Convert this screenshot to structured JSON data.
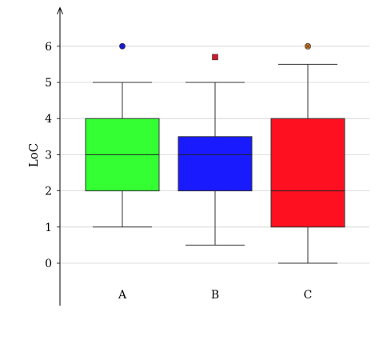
{
  "chart_data": {
    "type": "boxplot",
    "title": "",
    "xlabel": "",
    "ylabel": "LoC",
    "ylim": [
      -0.6,
      6.6
    ],
    "yticks": [
      0,
      1,
      2,
      3,
      4,
      5,
      6
    ],
    "ytick_labels": [
      "0",
      "1",
      "2",
      "3",
      "4",
      "5",
      "6"
    ],
    "grid": "horizontal",
    "categories": [
      "A",
      "B",
      "C"
    ],
    "series": [
      {
        "category": "A",
        "whisker_low": 1,
        "q1": 2,
        "median": 3,
        "q3": 4,
        "whisker_high": 5,
        "outliers": [
          6
        ],
        "box_color": "#33ff33",
        "outlier_marker": "circle",
        "outlier_color": "#1a1acc"
      },
      {
        "category": "B",
        "whisker_low": 0.5,
        "q1": 2,
        "median": 3,
        "q3": 3.5,
        "whisker_high": 5,
        "outliers": [
          5.7
        ],
        "box_color": "#1a1aff",
        "outlier_marker": "square",
        "outlier_color": "#cc1a2a"
      },
      {
        "category": "C",
        "whisker_low": 0,
        "q1": 1,
        "median": 2,
        "q3": 4,
        "whisker_high": 5.5,
        "outliers": [
          6
        ],
        "box_color": "#ff1020",
        "outlier_marker": "circle-x",
        "outlier_color": "#e07a1a"
      }
    ]
  }
}
